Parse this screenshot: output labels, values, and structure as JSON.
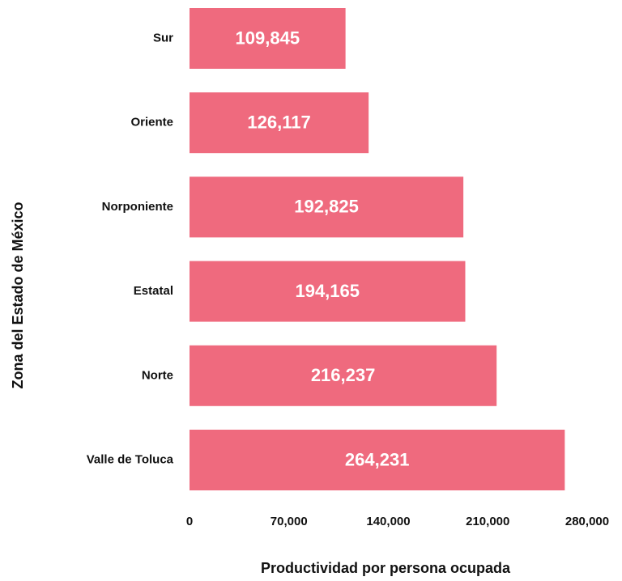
{
  "chart_data": {
    "type": "bar",
    "orientation": "horizontal",
    "y_label": "Zona del Estado de México",
    "x_label": "Productividad por persona ocupada",
    "categories": [
      "Sur",
      "Oriente",
      "Norponiente",
      "Estatal",
      "Norte",
      "Valle de Toluca"
    ],
    "values": [
      109845,
      126117,
      192825,
      194165,
      216237,
      264231
    ],
    "value_labels": [
      "109,845",
      "126,117",
      "192,825",
      "194,165",
      "216,237",
      "264,231"
    ],
    "color": "#ef6a7e",
    "xlim": [
      0,
      280000
    ],
    "xticks": [
      0,
      {
        "value": 70000,
        "label": "70,000"
      },
      {
        "value": 140000,
        "label": "140,000"
      },
      {
        "value": 210000,
        "label": "210,000"
      },
      {
        "value": 280000,
        "label": "280,000"
      }
    ],
    "grid": false
  }
}
